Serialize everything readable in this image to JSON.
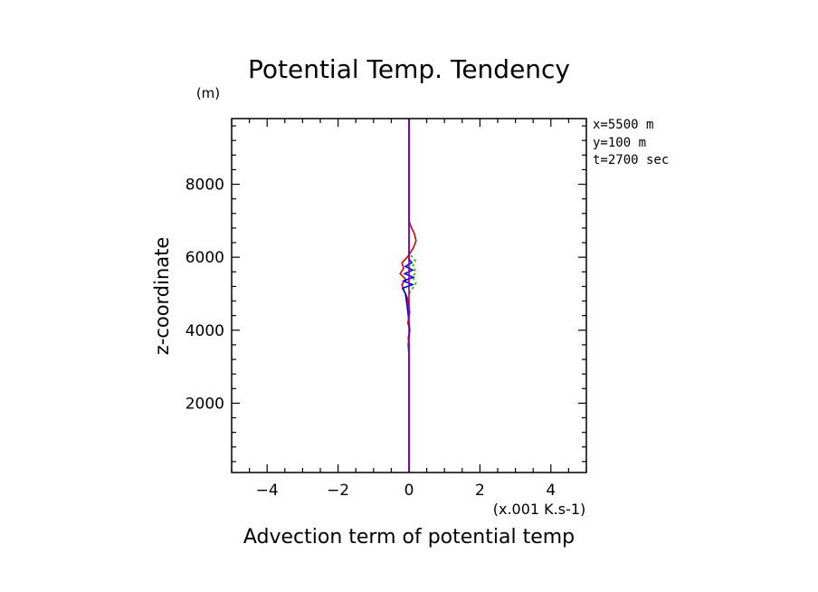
{
  "chart_data": {
    "type": "line",
    "title": "Potential Temp. Tendency",
    "xlabel": "Advection term of potential temp",
    "x_units": "(x.001 K.s-1)",
    "ylabel": "z-coordinate",
    "y_units": "(m)",
    "annotations": [
      "x=5500 m",
      "y=100 m",
      "t=2700 sec"
    ],
    "xlim": [
      -5,
      5
    ],
    "ylim": [
      100,
      9800
    ],
    "x_ticks": [
      -4,
      -2,
      0,
      2,
      4
    ],
    "x_tick_labels": [
      "−4",
      "−2",
      "0",
      "2",
      "4"
    ],
    "y_ticks": [
      2000,
      4000,
      6000,
      8000
    ],
    "y_tick_labels": [
      "2000",
      "4000",
      "6000",
      "8000"
    ],
    "grid": false,
    "series": [
      {
        "color": "#dd0000",
        "dash": "",
        "points": [
          [
            0,
            100
          ],
          [
            0,
            3600
          ],
          [
            -0.02,
            3800
          ],
          [
            0.02,
            4000
          ],
          [
            -0.03,
            4200
          ],
          [
            0.02,
            4500
          ],
          [
            -0.05,
            4900
          ],
          [
            -0.15,
            5100
          ],
          [
            -0.2,
            5250
          ],
          [
            -0.1,
            5400
          ],
          [
            -0.25,
            5550
          ],
          [
            -0.15,
            5700
          ],
          [
            -0.2,
            5850
          ],
          [
            -0.05,
            6000
          ],
          [
            0.02,
            6100
          ],
          [
            0.12,
            6250
          ],
          [
            0.2,
            6450
          ],
          [
            0.15,
            6650
          ],
          [
            0.05,
            6850
          ],
          [
            0,
            7000
          ],
          [
            0,
            7300
          ],
          [
            0,
            9800
          ]
        ]
      },
      {
        "color": "#00cc00",
        "dash": "3,3",
        "points": [
          [
            0,
            5000
          ],
          [
            0.1,
            5150
          ],
          [
            0.2,
            5300
          ],
          [
            0.1,
            5450
          ],
          [
            0.2,
            5600
          ],
          [
            0.1,
            5750
          ],
          [
            0.18,
            5900
          ],
          [
            0.05,
            6050
          ],
          [
            0,
            6150
          ]
        ]
      },
      {
        "color": "#0000dd",
        "dash": "",
        "points": [
          [
            0,
            100
          ],
          [
            0,
            3300
          ],
          [
            -0.02,
            3600
          ],
          [
            0.02,
            4000
          ],
          [
            -0.03,
            4500
          ],
          [
            -0.1,
            5000
          ],
          [
            -0.18,
            5150
          ],
          [
            0.1,
            5250
          ],
          [
            -0.15,
            5350
          ],
          [
            0.12,
            5450
          ],
          [
            -0.12,
            5550
          ],
          [
            0.1,
            5650
          ],
          [
            -0.1,
            5750
          ],
          [
            0.08,
            5850
          ],
          [
            0,
            5950
          ],
          [
            0,
            9800
          ]
        ]
      },
      {
        "color": "#8800aa",
        "dash": "",
        "points": [
          [
            0,
            100
          ],
          [
            0,
            9800
          ]
        ]
      }
    ]
  }
}
